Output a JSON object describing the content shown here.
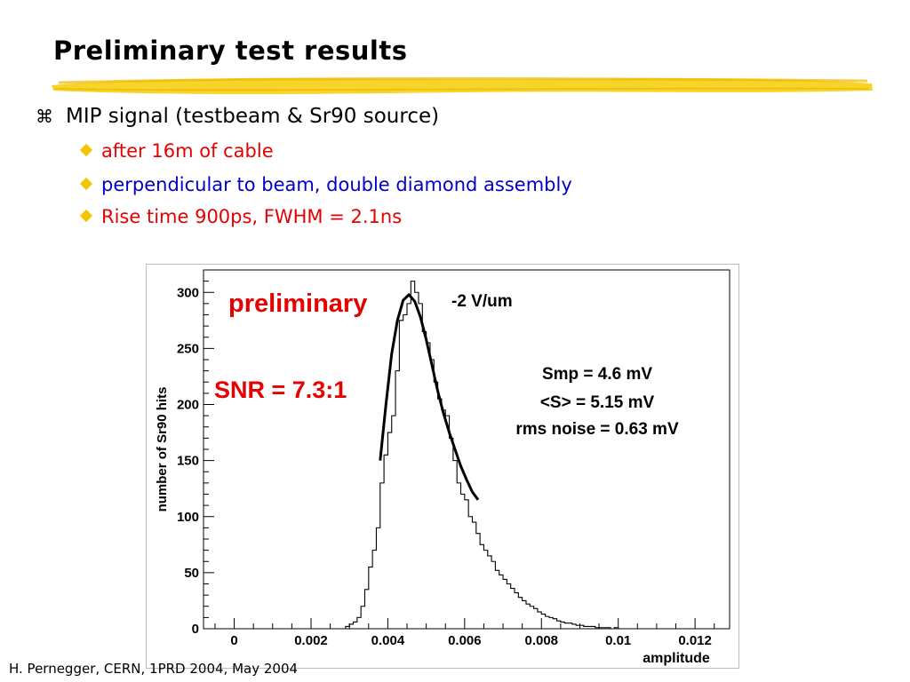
{
  "slide": {
    "title": "Preliminary test results",
    "bullet_main": "MIP signal (testbeam & Sr90 source)",
    "bullet_glyph": "⌘",
    "sub_bullets": [
      {
        "text": "after 16m of cable",
        "color": "#e60000"
      },
      {
        "text": "perpendicular to beam, double diamond assembly",
        "color": "#0000c8"
      },
      {
        "text": "Rise time 900ps, FWHM = 2.1ns",
        "color": "#e60000"
      }
    ],
    "footer": "H. Pernegger, CERN, 1PRD 2004, May 2004"
  },
  "chart_data": {
    "type": "histogram",
    "xlabel": "amplitude",
    "ylabel": "number of Sr90 hits",
    "xlim": [
      -0.0008,
      0.0129
    ],
    "ylim": [
      0,
      320
    ],
    "xticks": [
      0,
      0.002,
      0.004,
      0.006,
      0.008,
      0.01,
      0.012
    ],
    "xtick_labels": [
      "0",
      "0.002",
      "0.004",
      "0.006",
      "0.008",
      "0.01",
      "0.012"
    ],
    "yticks": [
      0,
      50,
      100,
      150,
      200,
      250,
      300
    ],
    "ytick_labels": [
      "0",
      "50",
      "100",
      "150",
      "200",
      "250",
      "300"
    ],
    "bin_start": 0.0028,
    "bin_width": 0.0001,
    "counts": [
      0,
      2,
      4,
      6,
      10,
      20,
      35,
      55,
      70,
      90,
      130,
      155,
      175,
      190,
      230,
      275,
      280,
      290,
      310,
      300,
      290,
      265,
      255,
      240,
      220,
      205,
      195,
      190,
      170,
      150,
      130,
      120,
      115,
      100,
      95,
      85,
      75,
      70,
      65,
      60,
      52,
      48,
      44,
      40,
      36,
      32,
      28,
      25,
      22,
      20,
      18,
      15,
      13,
      11,
      10,
      9,
      7,
      6,
      5,
      5,
      4,
      3,
      3,
      2,
      2,
      2,
      1,
      1,
      1,
      1,
      0,
      1,
      0,
      0
    ],
    "fit_curve": {
      "color": "#000000",
      "x": [
        0.0038,
        0.00395,
        0.0041,
        0.00425,
        0.0044,
        0.00455,
        0.0047,
        0.00485,
        0.005,
        0.00515,
        0.0053,
        0.00545,
        0.0056,
        0.00575,
        0.0059,
        0.00605,
        0.0062,
        0.00635
      ],
      "y": [
        150,
        200,
        245,
        275,
        293,
        298,
        292,
        278,
        258,
        235,
        212,
        192,
        175,
        160,
        145,
        133,
        122,
        115
      ]
    },
    "annotations": {
      "preliminary": "preliminary",
      "field": "-2 V/um",
      "snr": "SNR = 7.3:1",
      "stats": [
        "Smp = 4.6 mV",
        "<S> = 5.15 mV",
        "rms noise = 0.63 mV"
      ]
    },
    "colors": {
      "annotation_red": "#e60000",
      "hist": "#000000"
    }
  }
}
